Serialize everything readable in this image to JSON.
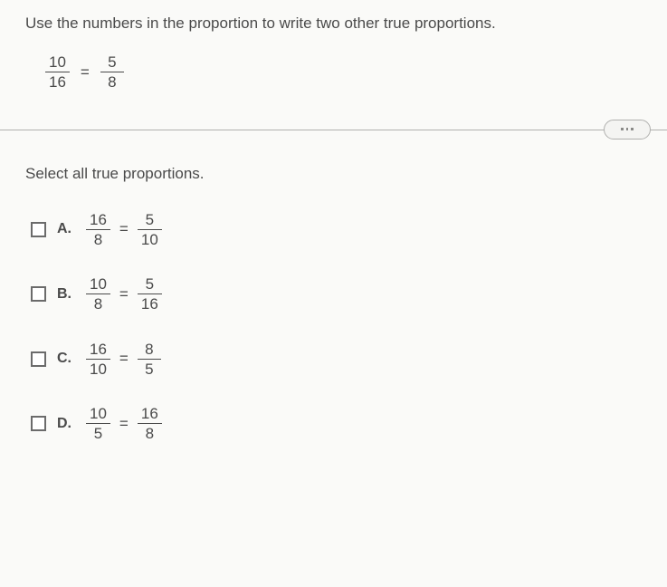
{
  "prompt": "Use the numbers in the proportion to write two other true proportions.",
  "given": {
    "left": {
      "num": "10",
      "den": "16"
    },
    "right": {
      "num": "5",
      "den": "8"
    },
    "eq": "="
  },
  "subprompt": "Select all true proportions.",
  "options": [
    {
      "letter": "A.",
      "left": {
        "num": "16",
        "den": "8"
      },
      "right": {
        "num": "5",
        "den": "10"
      }
    },
    {
      "letter": "B.",
      "left": {
        "num": "10",
        "den": "8"
      },
      "right": {
        "num": "5",
        "den": "16"
      }
    },
    {
      "letter": "C.",
      "left": {
        "num": "16",
        "den": "10"
      },
      "right": {
        "num": "8",
        "den": "5"
      }
    },
    {
      "letter": "D.",
      "left": {
        "num": "10",
        "den": "5"
      },
      "right": {
        "num": "16",
        "den": "8"
      }
    }
  ],
  "colors": {
    "text": "#4a4a4a",
    "background": "#fafaf8",
    "divider": "#b0b0ae",
    "pill_bg": "#f4f4f2",
    "checkbox_border": "#6b6b6b"
  },
  "typography": {
    "body_fontsize": 17,
    "option_label_fontsize": 16,
    "font_family": "Arial"
  }
}
